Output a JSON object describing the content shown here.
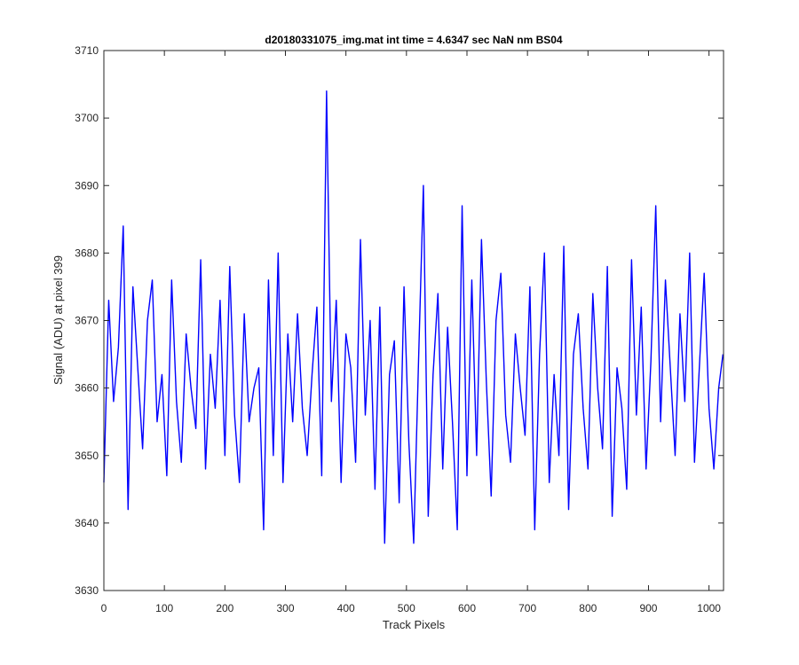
{
  "chart_data": {
    "type": "line",
    "title": "d20180331075_img.mat int time = 4.6347 sec  NaN nm BS04",
    "xlabel": "Track Pixels",
    "ylabel": "Signal (ADU) at pixel 399",
    "xlim": [
      0,
      1024
    ],
    "ylim": [
      3630,
      3710
    ],
    "xticks": [
      0,
      100,
      200,
      300,
      400,
      500,
      600,
      700,
      800,
      900,
      1000
    ],
    "yticks": [
      3630,
      3640,
      3650,
      3660,
      3670,
      3680,
      3690,
      3700,
      3710
    ],
    "grid": false,
    "legend": "none",
    "series": [
      {
        "color": "#0000ff",
        "x": [
          0,
          8,
          16,
          24,
          32,
          40,
          48,
          56,
          64,
          72,
          80,
          88,
          96,
          104,
          112,
          120,
          128,
          136,
          144,
          152,
          160,
          168,
          176,
          184,
          192,
          200,
          208,
          216,
          224,
          232,
          240,
          248,
          256,
          264,
          272,
          280,
          288,
          296,
          304,
          312,
          320,
          328,
          336,
          344,
          352,
          360,
          368,
          376,
          384,
          392,
          400,
          408,
          416,
          424,
          432,
          440,
          448,
          456,
          464,
          472,
          480,
          488,
          496,
          504,
          512,
          520,
          528,
          536,
          544,
          552,
          560,
          568,
          576,
          584,
          592,
          600,
          608,
          616,
          624,
          632,
          640,
          648,
          656,
          664,
          672,
          680,
          688,
          696,
          704,
          712,
          720,
          728,
          736,
          744,
          752,
          760,
          768,
          776,
          784,
          792,
          800,
          808,
          816,
          824,
          832,
          840,
          848,
          856,
          864,
          872,
          880,
          888,
          896,
          904,
          912,
          920,
          928,
          936,
          944,
          952,
          960,
          968,
          976,
          984,
          992,
          1000,
          1008,
          1016,
          1023
        ],
        "y": [
          3646,
          3673,
          3658,
          3666,
          3684,
          3642,
          3675,
          3663,
          3651,
          3670,
          3676,
          3655,
          3662,
          3647,
          3676,
          3658,
          3649,
          3668,
          3660,
          3654,
          3679,
          3648,
          3665,
          3657,
          3673,
          3650,
          3678,
          3656,
          3646,
          3671,
          3655,
          3660,
          3663,
          3639,
          3676,
          3650,
          3680,
          3646,
          3668,
          3655,
          3671,
          3657,
          3650,
          3662,
          3672,
          3647,
          3704,
          3658,
          3673,
          3646,
          3668,
          3663,
          3649,
          3682,
          3656,
          3670,
          3645,
          3672,
          3637,
          3662,
          3667,
          3643,
          3675,
          3652,
          3637,
          3664,
          3690,
          3641,
          3662,
          3674,
          3648,
          3669,
          3655,
          3639,
          3687,
          3647,
          3676,
          3650,
          3682,
          3661,
          3644,
          3670,
          3677,
          3656,
          3649,
          3668,
          3660,
          3653,
          3675,
          3639,
          3665,
          3680,
          3646,
          3662,
          3650,
          3681,
          3642,
          3665,
          3671,
          3657,
          3648,
          3674,
          3660,
          3651,
          3678,
          3641,
          3663,
          3657,
          3645,
          3679,
          3656,
          3672,
          3648,
          3664,
          3687,
          3655,
          3676,
          3663,
          3650,
          3671,
          3658,
          3680,
          3649,
          3663,
          3677,
          3657,
          3648,
          3660,
          3665
        ]
      }
    ]
  }
}
